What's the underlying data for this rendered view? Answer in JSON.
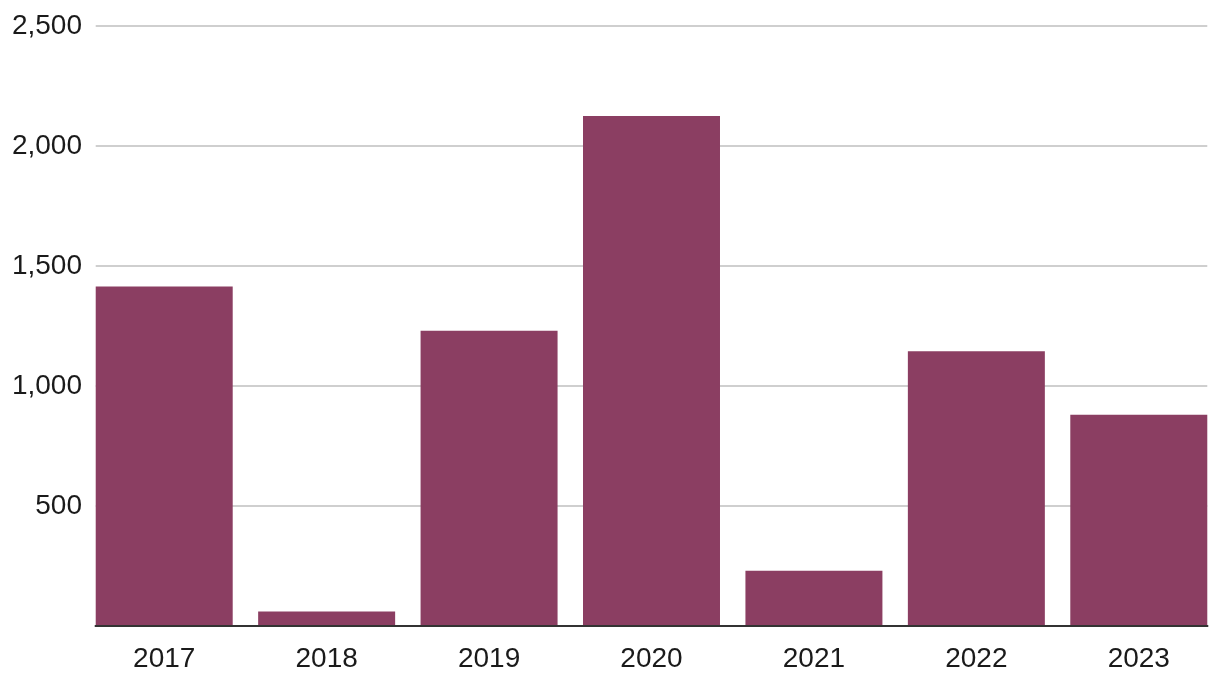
{
  "chart_data": {
    "type": "bar",
    "categories": [
      "2017",
      "2018",
      "2019",
      "2020",
      "2021",
      "2022",
      "2023"
    ],
    "values": [
      1415,
      60,
      1230,
      2125,
      230,
      1145,
      880
    ],
    "color": "#8b3e62",
    "ylim": [
      0,
      2500
    ],
    "yticks": [
      500,
      {
        "value": 1000,
        "label": "1,000"
      },
      {
        "value": 1500,
        "label": "1,500"
      },
      {
        "value": 2000,
        "label": "2,000"
      },
      {
        "value": 2500,
        "label": "2,500"
      }
    ],
    "grid": "y"
  }
}
